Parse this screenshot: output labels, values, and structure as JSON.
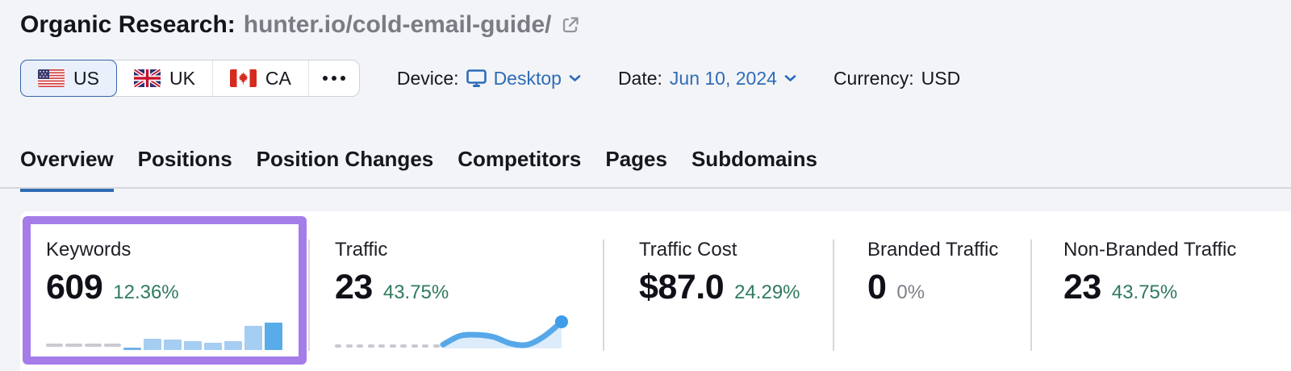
{
  "header": {
    "title_prefix": "Organic Research:",
    "title_target": "hunter.io/cold-email-guide/"
  },
  "filters": {
    "countries": [
      {
        "code": "US",
        "selected": true
      },
      {
        "code": "UK",
        "selected": false
      },
      {
        "code": "CA",
        "selected": false
      }
    ],
    "device_label": "Device:",
    "device_value": "Desktop",
    "date_label": "Date:",
    "date_value": "Jun 10, 2024",
    "currency_label": "Currency:",
    "currency_value": "USD"
  },
  "tabs": [
    {
      "label": "Overview",
      "active": true
    },
    {
      "label": "Positions",
      "active": false
    },
    {
      "label": "Position Changes",
      "active": false
    },
    {
      "label": "Competitors",
      "active": false
    },
    {
      "label": "Pages",
      "active": false
    },
    {
      "label": "Subdomains",
      "active": false
    }
  ],
  "cards": [
    {
      "label": "Keywords",
      "value": "609",
      "change": "12.36%",
      "change_color": "#2f7a5d",
      "highlighted": true
    },
    {
      "label": "Traffic",
      "value": "23",
      "change": "43.75%",
      "change_color": "#2f7a5d",
      "highlighted": false
    },
    {
      "label": "Traffic Cost",
      "value": "$87.0",
      "change": "24.29%",
      "change_color": "#2f7a5d",
      "highlighted": false
    },
    {
      "label": "Branded Traffic",
      "value": "0",
      "change": "0%",
      "change_color": "#7e7e88",
      "highlighted": false
    },
    {
      "label": "Non-Branded Traffic",
      "value": "23",
      "change": "43.75%",
      "change_color": "#2f7a5d",
      "highlighted": false
    }
  ],
  "chart_data": [
    {
      "type": "bar",
      "name": "keywords-trend-sparkline",
      "scale": "relative (no axis shown)",
      "no_data_leading_periods": 4,
      "values": [
        0,
        0,
        0,
        0,
        1,
        14,
        13,
        11,
        9,
        11,
        30,
        34
      ]
    },
    {
      "type": "area",
      "name": "traffic-trend-sparkline",
      "scale": "relative (no axis shown, current value 23)",
      "no_data_leading_periods": 10,
      "values": [
        0,
        0,
        0,
        0,
        0,
        0,
        0,
        0,
        0,
        0,
        2,
        10,
        11,
        9,
        3,
        2,
        10,
        23
      ]
    }
  ],
  "icons": {
    "title": "external-link-icon",
    "device": "desktop-monitor-icon",
    "dropdowns": "chevron-down-icon",
    "more_countries": "ellipsis-icon",
    "flags": [
      "us-flag-icon",
      "uk-flag-icon",
      "ca-flag-icon"
    ]
  },
  "colors": {
    "page_bg": "#f3f4f7",
    "panel_bg": "#ffffff",
    "accent": "#2e6cb8",
    "tab_underline": "#2e6cb4",
    "sel_bg": "#e9f0fb",
    "sel_border": "#3566a8",
    "purple": "#a57ce8",
    "green": "#2f7a5d",
    "muted": "#7e7e88",
    "bar_light": "#a6cdf2",
    "bar_dark": "#58ace9",
    "line": "#57a8e8",
    "dot": "#3f9ce8",
    "area": "#dcecfa",
    "dash": "#c9c9d2",
    "divider": "#d6d7de",
    "title_gray": "#7b7b84"
  }
}
